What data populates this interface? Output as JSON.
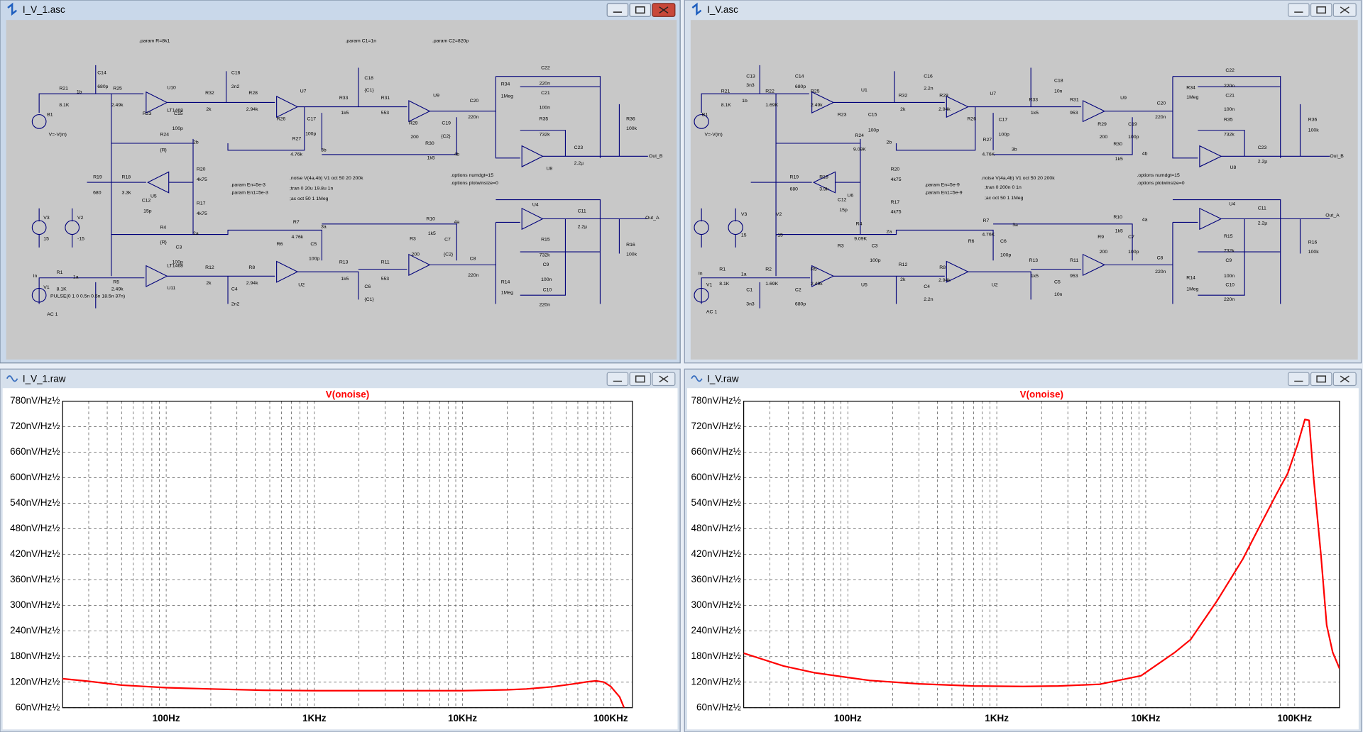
{
  "windows": [
    {
      "title": "I_V_1.asc",
      "schematic": {
        "labels": [
          ".param R=8k1",
          ".param C1=1n",
          ".param C2=820p",
          "C14",
          "680p",
          "R21",
          "8.1K",
          "1b",
          "R25",
          "2.49k",
          "U10",
          "LT1468",
          "R32",
          "2k",
          "R28",
          "2.94k",
          "U7",
          "R33",
          "1k5",
          "R31",
          "553",
          "U9",
          "C20",
          "220n",
          "R34",
          "1Meg",
          "C22",
          "220n",
          "C21",
          "100n",
          "R35",
          "732k",
          "U8",
          "C23",
          "2.2µ",
          "R36",
          "100k",
          "Out_B",
          "B1",
          "V=-V(in)",
          "R23",
          "C15",
          "100p",
          "R24",
          "{R}",
          "2b",
          "R26",
          "C17",
          "100p",
          "R27",
          "4.76k",
          "3b",
          "R29",
          "200",
          "C19",
          "{C2}",
          "R30",
          "1k5",
          "4b",
          "C16",
          "2n2",
          "C18",
          "{C1}",
          "R20",
          "4k75",
          "R19",
          "680",
          "R18",
          "3.3k",
          "U5",
          "C12",
          "15p",
          "R17",
          "4k75",
          ".param En=5e-3",
          ".param En1=5e-3",
          ".noise V(4a,4b) V1 oct 50 20 200k",
          ";tran 0 20u 19.8u 1n",
          ";ac oct 50 1 1Meg",
          ".options numdgt=15",
          ".options plotwinsize=0",
          "V3",
          "15",
          "V2",
          "-15",
          "R4",
          "{R}",
          "2a",
          "R7",
          "4.76k",
          "3a",
          "R6",
          "C5",
          "100p",
          "R10",
          "1k5",
          "4a",
          "R3",
          "200",
          "C7",
          "{C2}",
          "U4",
          "C11",
          "2.2µ",
          "Out_A",
          "R16",
          "100k",
          "R15",
          "732k",
          "C9",
          "100n",
          "C10",
          "220n",
          "R14",
          "1Meg",
          "C8",
          "220n",
          "R11",
          "553",
          "R13",
          "1k5",
          "C6",
          "{C1}",
          "R8",
          "2.94k",
          "C4",
          "2n2",
          "R12",
          "2k",
          "U2",
          "C3",
          "100p",
          "R5",
          "2.49k",
          "U11",
          "LT1468",
          "R1",
          "8.1K",
          "1a",
          "In",
          "V1",
          "PULSE(0 1 0 0.5n 0.5n 18.5n 37n)",
          "AC 1"
        ]
      }
    },
    {
      "title": "I_V.asc",
      "schematic": {
        "labels": [
          "R21",
          "8.1K",
          "C13",
          "3n3",
          "1b",
          "R22",
          "1.69K",
          "C14",
          "680p",
          "R25",
          "2.49k",
          "U1",
          "R32",
          "2k",
          "C16",
          "2.2n",
          "R28",
          "2.94k",
          "U7",
          "R33",
          "1k5",
          "C18",
          "10n",
          "R31",
          "953",
          "U9",
          "C20",
          "220n",
          "R34",
          "1Meg",
          "C22",
          "220n",
          "C21",
          "100n",
          "R35",
          "732k",
          "U8",
          "C23",
          "2.2µ",
          "R36",
          "100k",
          "Out_B",
          "B1",
          "V=-V(in)",
          "R23",
          "C15",
          "100p",
          "R24",
          "9.09K",
          "2b",
          "C17",
          "100p",
          "R26",
          "R29",
          "200",
          "C19",
          "100p",
          "R30",
          "1k5",
          "R27",
          "4.76K",
          "3b",
          "4b",
          "R20",
          "4k75",
          "R19",
          "680",
          "R18",
          "3.9k",
          "U6",
          "C12",
          "15p",
          "R17",
          "4k75",
          ".param En=5e-9",
          ".param En1=5e-9",
          ".noise V(4a,4b) V1 oct 50 20 200k",
          ";tran 0 200n 0 1n",
          ";ac oct 50 1 1Meg",
          ".options numdgt=15",
          ".options plotwinsize=0",
          "V3",
          "15",
          "V2",
          "-15",
          "R4",
          "9.09K",
          "2a",
          "R7",
          "4.76K",
          "3a",
          "C6",
          "100p",
          "R6",
          "R10",
          "1k5",
          "4a",
          "R9",
          "200",
          "C7",
          "100p",
          "U4",
          "C11",
          "2.2µ",
          "Out_A",
          "R16",
          "100k",
          "R15",
          "732k",
          "C9",
          "100n",
          "C10",
          "220n",
          "R14",
          "1Meg",
          "C8",
          "220n",
          "R11",
          "953",
          "R13",
          "1k5",
          "C5",
          "10n",
          "R8",
          "2.94k",
          "C4",
          "2.2n",
          "R12",
          "2k",
          "U2",
          "U5",
          "C3",
          "100p",
          "R3",
          "R5",
          "2.49k",
          "C2",
          "680p",
          "R2",
          "1.69K",
          "C1",
          "3n3",
          "R1",
          "8.1K",
          "1a",
          "In",
          "V1",
          "AC 1"
        ]
      }
    },
    {
      "title": "I_V_1.raw",
      "chart_data": {
        "type": "line",
        "log_x": true,
        "grid": true,
        "xlim": [
          20,
          140000
        ],
        "ylim": [
          60,
          780
        ],
        "yticks": [
          {
            "value": 60,
            "label": "60nV/Hz½"
          },
          {
            "value": 120,
            "label": "120nV/Hz½"
          },
          {
            "value": 180,
            "label": "180nV/Hz½"
          },
          {
            "value": 240,
            "label": "240nV/Hz½"
          },
          {
            "value": 300,
            "label": "300nV/Hz½"
          },
          {
            "value": 360,
            "label": "360nV/Hz½"
          },
          {
            "value": 420,
            "label": "420nV/Hz½"
          },
          {
            "value": 480,
            "label": "480nV/Hz½"
          },
          {
            "value": 540,
            "label": "540nV/Hz½"
          },
          {
            "value": 600,
            "label": "600nV/Hz½"
          },
          {
            "value": 660,
            "label": "660nV/Hz½"
          },
          {
            "value": 720,
            "label": "720nV/Hz½"
          },
          {
            "value": 780,
            "label": "780nV/Hz½"
          }
        ],
        "xticks": [
          {
            "value": 100,
            "label": "100Hz"
          },
          {
            "value": 1000,
            "label": "1KHz"
          },
          {
            "value": 10000,
            "label": "10KHz"
          },
          {
            "value": 100000,
            "label": "100KHz"
          }
        ],
        "minor_xticks": [
          30,
          40,
          50,
          60,
          70,
          80,
          90,
          200,
          300,
          400,
          500,
          600,
          700,
          800,
          900,
          2000,
          3000,
          4000,
          5000,
          6000,
          7000,
          8000,
          9000,
          20000,
          30000,
          40000,
          50000,
          60000,
          70000,
          80000,
          90000
        ],
        "series": [
          {
            "name": "V(onoise)",
            "color": "#ff0000",
            "x": [
              20,
              30,
              50,
              100,
              200,
              450,
              1000,
              3000,
              10000,
              20000,
              27000,
              40000,
              54000,
              70000,
              80000,
              90000,
              100000,
              115000,
              123000
            ],
            "values": [
              128,
              122,
              113,
              107,
              104,
              101,
              100,
              100,
              100,
              102,
              104,
              109,
              115,
              121,
              123,
              120,
              110,
              85,
              60
            ]
          }
        ]
      }
    },
    {
      "title": "I_V.raw",
      "chart_data": {
        "type": "line",
        "log_x": true,
        "grid": true,
        "xlim": [
          20,
          200000
        ],
        "ylim": [
          60,
          780
        ],
        "yticks": [
          {
            "value": 60,
            "label": "60nV/Hz½"
          },
          {
            "value": 120,
            "label": "120nV/Hz½"
          },
          {
            "value": 180,
            "label": "180nV/Hz½"
          },
          {
            "value": 240,
            "label": "240nV/Hz½"
          },
          {
            "value": 300,
            "label": "300nV/Hz½"
          },
          {
            "value": 360,
            "label": "360nV/Hz½"
          },
          {
            "value": 420,
            "label": "420nV/Hz½"
          },
          {
            "value": 480,
            "label": "480nV/Hz½"
          },
          {
            "value": 540,
            "label": "540nV/Hz½"
          },
          {
            "value": 600,
            "label": "600nV/Hz½"
          },
          {
            "value": 660,
            "label": "660nV/Hz½"
          },
          {
            "value": 720,
            "label": "720nV/Hz½"
          },
          {
            "value": 780,
            "label": "780nV/Hz½"
          }
        ],
        "xticks": [
          {
            "value": 100,
            "label": "100Hz"
          },
          {
            "value": 1000,
            "label": "1KHz"
          },
          {
            "value": 10000,
            "label": "10KHz"
          },
          {
            "value": 100000,
            "label": "100KHz"
          }
        ],
        "minor_xticks": [
          30,
          40,
          50,
          60,
          70,
          80,
          90,
          200,
          300,
          400,
          500,
          600,
          700,
          800,
          900,
          2000,
          3000,
          4000,
          5000,
          6000,
          7000,
          8000,
          9000,
          20000,
          30000,
          40000,
          50000,
          60000,
          70000,
          80000,
          90000
        ],
        "series": [
          {
            "name": "V(onoise)",
            "color": "#ff0000",
            "x": [
              20,
              37,
              60,
              100,
              140,
              300,
              700,
              1500,
              2600,
              4900,
              9300,
              15700,
              20000,
              30000,
              45000,
              60000,
              75000,
              90000,
              105000,
              117000,
              125000,
              134000,
              150000,
              164000,
              180000,
              200000
            ],
            "values": [
              188,
              158,
              142,
              131,
              124,
              116,
              111,
              110,
              111,
              115,
              135,
              190,
              220,
              310,
              410,
              495,
              560,
              611,
              680,
              737,
              735,
              600,
              420,
              254,
              190,
              152
            ]
          }
        ]
      }
    }
  ]
}
